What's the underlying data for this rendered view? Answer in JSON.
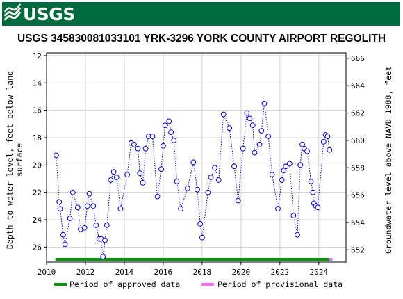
{
  "header": {
    "logo_text": "USGS"
  },
  "chart_data": {
    "type": "scatter",
    "title": "USGS 345830081033101 YRK-3296 YORK COUNTY AIRPORT REGOLITH",
    "ylabel_left": [
      "Depth to water level, feet below land",
      "surface"
    ],
    "ylabel_right": "Groundwater level above NAVD 1988, feet",
    "xlim": [
      2010,
      2025.4
    ],
    "ylim_left": [
      27.1,
      11.8
    ],
    "ylim_right": [
      651.1,
      666.4
    ],
    "x_ticks": [
      "2010",
      "2012",
      "2014",
      "2016",
      "2018",
      "2020",
      "2022",
      "2024"
    ],
    "y_ticks_left": [
      "12",
      "14",
      "16",
      "18",
      "20",
      "22",
      "24",
      "26"
    ],
    "y_ticks_right": [
      "652",
      "654",
      "656",
      "658",
      "660",
      "662",
      "664",
      "666"
    ],
    "grid": true,
    "line_style": "dotted",
    "series": [
      {
        "name": "Depth to water level",
        "color": "#0000cc",
        "x": [
          2010.5,
          2010.65,
          2010.7,
          2010.85,
          2010.95,
          2011.2,
          2011.35,
          2011.6,
          2011.75,
          2011.95,
          2012.1,
          2012.2,
          2012.4,
          2012.55,
          2012.7,
          2012.8,
          2012.9,
          2013.0,
          2013.1,
          2013.3,
          2013.45,
          2013.6,
          2013.8,
          2014.15,
          2014.35,
          2014.5,
          2014.7,
          2014.8,
          2014.95,
          2015.1,
          2015.25,
          2015.45,
          2015.7,
          2015.9,
          2016.0,
          2016.1,
          2016.3,
          2016.4,
          2016.55,
          2016.7,
          2016.9,
          2017.25,
          2017.55,
          2017.75,
          2017.9,
          2018.0,
          2018.3,
          2018.45,
          2018.65,
          2018.85,
          2019.1,
          2019.4,
          2019.65,
          2019.85,
          2020.1,
          2020.3,
          2020.45,
          2020.6,
          2020.7,
          2020.95,
          2021.05,
          2021.2,
          2021.4,
          2021.6,
          2021.9,
          2022.1,
          2022.2,
          2022.3,
          2022.5,
          2022.7,
          2022.9,
          2023.05,
          2023.15,
          2023.25,
          2023.4,
          2023.6,
          2023.7,
          2023.75,
          2023.85,
          2023.95,
          2024.25,
          2024.35,
          2024.45,
          2024.55
        ],
        "y": [
          19.3,
          22.7,
          23.2,
          25.1,
          25.8,
          23.9,
          22.0,
          23.1,
          24.7,
          24.6,
          23.0,
          22.1,
          23.0,
          24.4,
          25.4,
          25.4,
          26.7,
          25.5,
          24.4,
          21.1,
          20.5,
          20.9,
          23.2,
          20.7,
          18.4,
          18.5,
          18.8,
          20.6,
          21.3,
          18.8,
          17.9,
          17.9,
          22.3,
          20.3,
          18.6,
          17.1,
          16.8,
          17.6,
          18.2,
          21.2,
          23.2,
          21.7,
          19.8,
          21.8,
          24.3,
          25.3,
          22.0,
          20.9,
          20.2,
          21.1,
          16.3,
          17.3,
          20.1,
          22.6,
          18.8,
          16.2,
          16.6,
          17.1,
          19.1,
          18.5,
          17.5,
          15.5,
          17.9,
          20.7,
          23.2,
          21.1,
          20.4,
          20.1,
          19.9,
          23.7,
          25.1,
          20.0,
          18.5,
          18.8,
          19.0,
          21.2,
          22.0,
          22.8,
          23.0,
          23.1,
          18.3,
          17.8,
          17.9,
          18.9
        ]
      }
    ],
    "legend": [
      {
        "label": "Period of approved data",
        "color": "#009900"
      },
      {
        "label": "Period of provisional data",
        "color": "#ff66ff"
      }
    ],
    "periods": [
      {
        "type": "approved",
        "x": [
          2010.45,
          2024.55
        ],
        "color": "#009900"
      },
      {
        "type": "provisional",
        "x": [
          2024.55,
          2024.7
        ],
        "color": "#ff66ff"
      }
    ]
  }
}
